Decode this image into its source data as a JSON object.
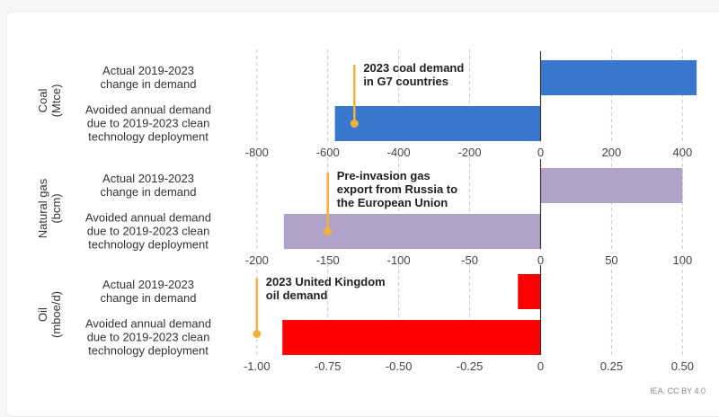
{
  "chart_data": {
    "type": "bar",
    "orientation": "horizontal",
    "source": "IEA. CC BY 4.0",
    "categories": [
      "Actual 2019-2023 change in demand",
      "Avoided annual demand due to 2019-2023 clean technology deployment"
    ],
    "category_lines": [
      [
        "Actual 2019-2023",
        "change in demand"
      ],
      [
        "Avoided annual demand",
        "due to 2019-2023 clean",
        "technology deployment"
      ]
    ],
    "panels": [
      {
        "name": "coal",
        "label_lines": [
          "Coal",
          "(Mtce)"
        ],
        "color": "#3a78d0",
        "xlim": [
          -800,
          440
        ],
        "ticks": [
          -800,
          -600,
          -400,
          -200,
          0,
          200,
          400
        ],
        "tick_labels": [
          "-800",
          "-600",
          "-400",
          "-200",
          "0",
          "200",
          "400"
        ],
        "values": [
          440,
          -580
        ],
        "annotation": {
          "value": -525,
          "lines": [
            "2023 coal demand",
            "in G7 countries"
          ]
        }
      },
      {
        "name": "natural-gas",
        "label_lines": [
          "Natural gas",
          "(bcm)"
        ],
        "color": "#b0a2c8",
        "xlim": [
          -200,
          110
        ],
        "ticks": [
          -200,
          -150,
          -100,
          -50,
          0,
          50,
          100
        ],
        "tick_labels": [
          "-200",
          "-150",
          "-100",
          "-50",
          "0",
          "50",
          "100"
        ],
        "values": [
          100,
          -181
        ],
        "annotation": {
          "value": -150,
          "lines": [
            "Pre-invasion gas",
            "export from Russia to",
            "the European Union"
          ]
        }
      },
      {
        "name": "oil",
        "label_lines": [
          "Oil",
          "(mboe/d)"
        ],
        "color": "#ff0000",
        "xlim": [
          -1.0,
          0.55
        ],
        "ticks": [
          -1.0,
          -0.75,
          -0.5,
          -0.25,
          0,
          0.25,
          0.5
        ],
        "tick_labels": [
          "-1.00",
          "-0.75",
          "-0.50",
          "-0.25",
          "0",
          "0.25",
          "0.50"
        ],
        "values": [
          -0.08,
          -0.91
        ],
        "annotation": {
          "value": -1.0,
          "lines": [
            "2023 United Kingdom",
            "oil demand"
          ]
        }
      }
    ],
    "annotation_color": "#f2b13c"
  }
}
